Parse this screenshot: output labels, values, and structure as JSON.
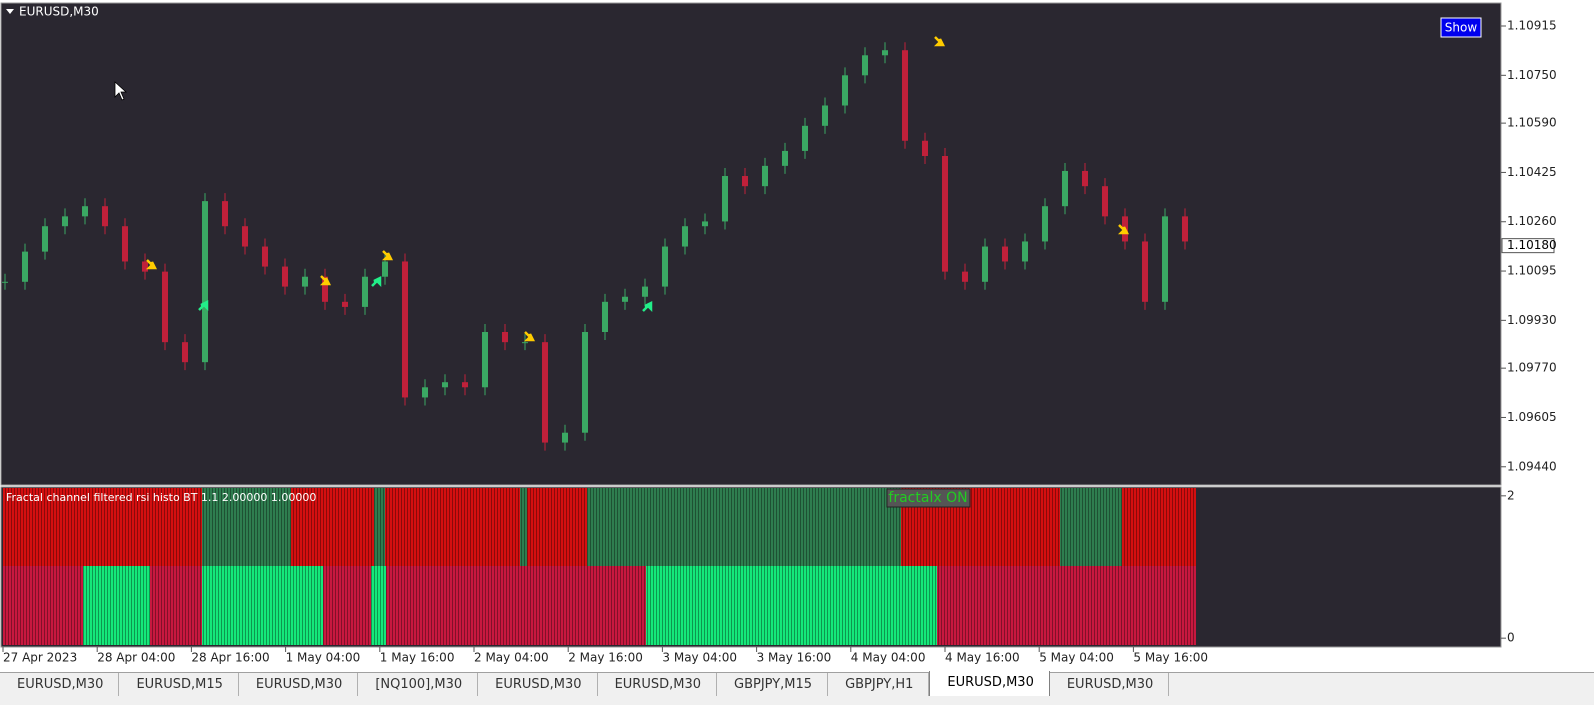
{
  "window": {
    "symbol": "EURUSD,M30",
    "show_button": "Show"
  },
  "price_chart": {
    "close": [
      1.10059,
      1.1016,
      1.10245,
      1.10278,
      1.10312,
      1.10245,
      1.10127,
      1.10093,
      1.09857,
      1.0979,
      1.10329,
      1.10245,
      1.10177,
      1.1011,
      1.10043,
      1.10076,
      1.09992,
      1.09975,
      1.10076,
      1.10127,
      1.09672,
      1.09706,
      1.09723,
      1.09706,
      1.09891,
      1.09857,
      1.09857,
      1.09521,
      1.09554,
      1.09891,
      1.09992,
      1.10009,
      1.10043,
      1.10177,
      1.10245,
      1.10261,
      1.10413,
      1.10379,
      1.10447,
      1.10497,
      1.10581,
      1.10649,
      1.1075,
      1.10817,
      1.10834,
      1.10531,
      1.1048,
      1.10093,
      1.10059,
      1.10177,
      1.10127,
      1.10194,
      1.10312,
      1.1043,
      1.10379,
      1.10278,
      1.10194,
      1.09992,
      1.10278,
      1.10194
    ],
    "ylim": [
      1.09379,
      1.10992
    ],
    "yticks": [
      {
        "value": 1.10915,
        "label": "1.10915"
      },
      {
        "value": 1.1075,
        "label": "1.10750"
      },
      {
        "value": 1.1059,
        "label": "1.10590"
      },
      {
        "value": 1.10425,
        "label": "1.10425"
      },
      {
        "value": 1.1026,
        "label": "1.10260"
      },
      {
        "value": 1.10095,
        "label": "1.10095"
      },
      {
        "value": 1.0993,
        "label": "1.09930"
      },
      {
        "value": 1.0977,
        "label": "1.09770"
      },
      {
        "value": 1.09605,
        "label": "1.09605"
      },
      {
        "value": 1.0944,
        "label": "1.09440"
      }
    ],
    "current_price": {
      "value": 1.1018,
      "label": "1.10180"
    }
  },
  "indicator": {
    "label": "Fractal channel filtered rsi histo BT 1.1 2.00000 1.00000",
    "badge": "fractalx ON",
    "ylim": [
      -0.11,
      2.11
    ],
    "yticks": [
      2,
      0
    ]
  },
  "time_labels": [
    "27 Apr 2023",
    "28 Apr 04:00",
    "28 Apr 16:00",
    "1 May 04:00",
    "1 May 16:00",
    "2 May 04:00",
    "2 May 16:00",
    "3 May 04:00",
    "3 May 16:00",
    "4 May 04:00",
    "4 May 16:00",
    "5 May 04:00",
    "5 May 16:00"
  ],
  "tabs": [
    "EURUSD,M30",
    "EURUSD,M15",
    "EURUSD,M30",
    "[NQ100],M30",
    "EURUSD,M30",
    "EURUSD,M30",
    "GBPJPY,M15",
    "GBPJPY,H1",
    "EURUSD,M30",
    "EURUSD,M30"
  ],
  "active_tab": 8
}
